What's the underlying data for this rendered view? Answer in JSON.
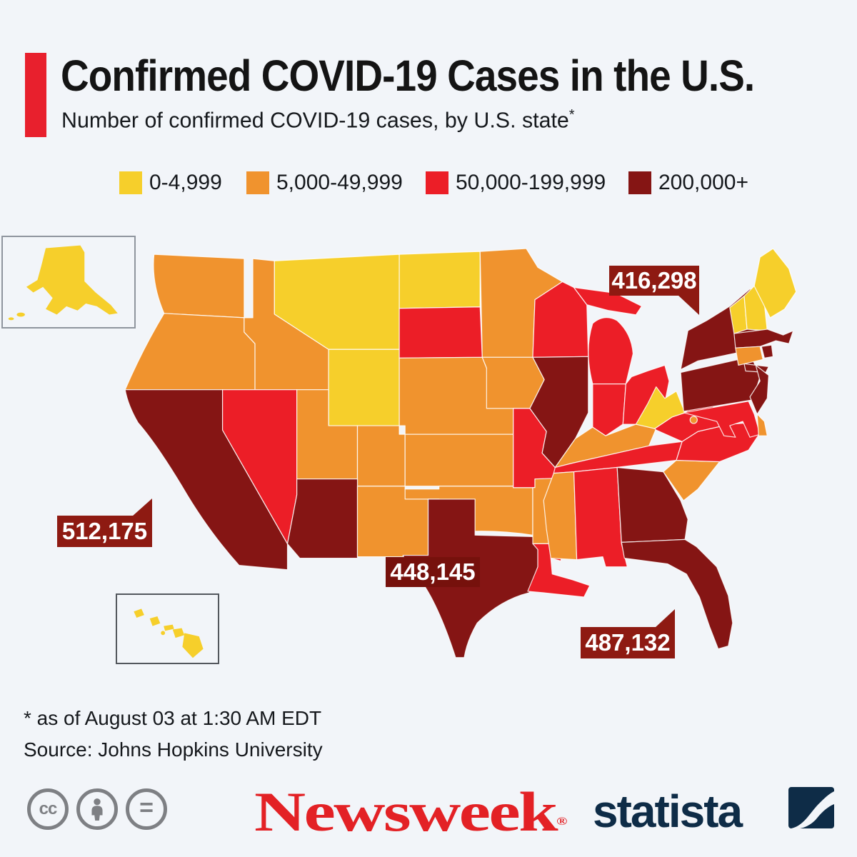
{
  "header": {
    "title": "Confirmed COVID-19 Cases in the U.S.",
    "subtitle": "Number of confirmed COVID-19 cases, by U.S. state",
    "subtitle_marker": "*",
    "accent_color": "#E8202D"
  },
  "chart_data": {
    "type": "choropleth_map",
    "title": "Confirmed COVID-19 Cases in the U.S.",
    "subtitle": "Number of confirmed COVID-19 cases, by U.S. state*",
    "legend": {
      "position": "top",
      "items": [
        {
          "label": "0-4,999",
          "color": "#F6CF2B"
        },
        {
          "label": "5,000-49,999",
          "color": "#F0932E"
        },
        {
          "label": "50,000-199,999",
          "color": "#EC1E27"
        },
        {
          "label": "200,000+",
          "color": "#851514"
        }
      ]
    },
    "states": {
      "AK": "0-4,999",
      "HI": "0-4,999",
      "MT": "0-4,999",
      "WY": "0-4,999",
      "ND": "0-4,999",
      "ME": "0-4,999",
      "VT": "0-4,999",
      "NH": "0-4,999",
      "WV": "0-4,999",
      "WA": "5,000-49,999",
      "OR": "5,000-49,999",
      "ID": "5,000-49,999",
      "UT": "5,000-49,999",
      "CO": "5,000-49,999",
      "NM": "5,000-49,999",
      "NE": "5,000-49,999",
      "KS": "5,000-49,999",
      "OK": "5,000-49,999",
      "MN": "5,000-49,999",
      "IA": "5,000-49,999",
      "AR": "5,000-49,999",
      "MS": "5,000-49,999",
      "SC": "5,000-49,999",
      "KY": "5,000-49,999",
      "CT": "5,000-49,999",
      "DE": "5,000-49,999",
      "DC": "5,000-49,999",
      "SD": "50,000-199,999",
      "NV": "50,000-199,999",
      "MO": "50,000-199,999",
      "LA": "50,000-199,999",
      "AL": "50,000-199,999",
      "TN": "50,000-199,999",
      "NC": "50,000-199,999",
      "VA": "50,000-199,999",
      "MD": "50,000-199,999",
      "OH": "50,000-199,999",
      "IN": "50,000-199,999",
      "MI": "50,000-199,999",
      "WI": "50,000-199,999",
      "CA": "200,000+",
      "AZ": "200,000+",
      "TX": "200,000+",
      "FL": "200,000+",
      "GA": "200,000+",
      "IL": "200,000+",
      "NY": "200,000+",
      "PA": "200,000+",
      "NJ": "200,000+",
      "MA": "200,000+",
      "RI": "200,000+"
    },
    "callouts": [
      {
        "state": "NY",
        "value": "416,298"
      },
      {
        "state": "CA",
        "value": "512,175"
      },
      {
        "state": "TX",
        "value": "448,145"
      },
      {
        "state": "FL",
        "value": "487,132"
      }
    ],
    "note": "* as of August 03 at 1:30 AM EDT",
    "source": "Johns Hopkins University"
  },
  "footer": {
    "note": "* as of August 03 at 1:30 AM EDT",
    "source_line": "Source: Johns Hopkins University"
  },
  "branding": {
    "newsweek": "Newsweek",
    "newsweek_reg": "®",
    "newsweek_color": "#E32125",
    "statista": "statista",
    "statista_color": "#0E2C47",
    "cc_letters": "cc",
    "cc_equals": "="
  }
}
